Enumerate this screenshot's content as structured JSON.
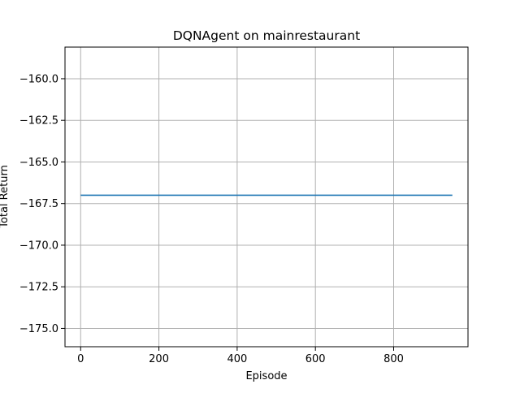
{
  "chart_data": {
    "type": "line",
    "title": "DQNAgent on mainrestaurant",
    "xlabel": "Episode",
    "ylabel": "Total Return",
    "xlim": [
      -40,
      990
    ],
    "ylim": [
      -176.1,
      -158.1
    ],
    "xticks": [
      0,
      200,
      400,
      600,
      800
    ],
    "xtick_labels": [
      "0",
      "200",
      "400",
      "600",
      "800"
    ],
    "yticks": [
      -160.0,
      -162.5,
      -165.0,
      -167.5,
      -170.0,
      -172.5,
      -175.0
    ],
    "ytick_labels": [
      "−160.0",
      "−162.5",
      "−165.0",
      "−167.5",
      "−170.0",
      "−172.5",
      "−175.0"
    ],
    "grid": true,
    "series": [
      {
        "color": "#1f77b4",
        "x": [
          0,
          950
        ],
        "y": [
          -167.0,
          -167.0
        ]
      }
    ]
  }
}
